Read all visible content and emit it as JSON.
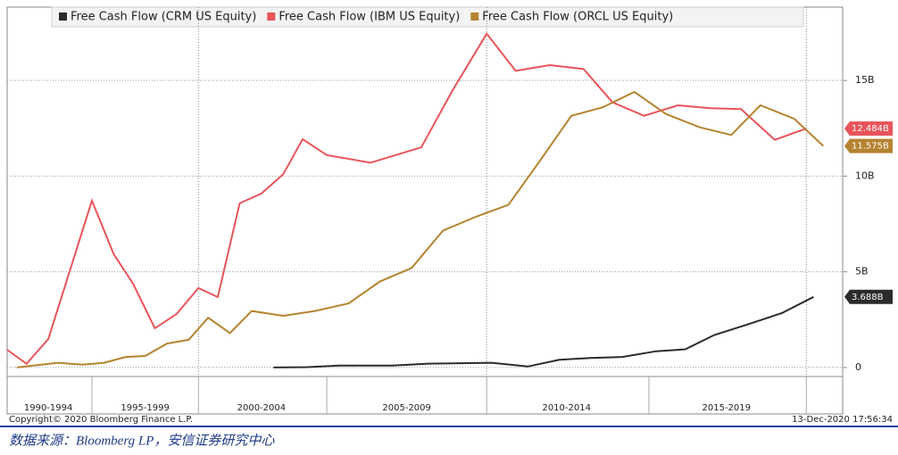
{
  "chart_data": {
    "type": "line",
    "legend": "top",
    "grid": true,
    "xlim": [
      1987.0,
      2021.5
    ],
    "ylim": [
      -0.47,
      18.83
    ],
    "yticks": [
      0,
      {
        "value": 5,
        "label": "5B"
      },
      {
        "value": 10,
        "label": "10B"
      },
      {
        "value": 15,
        "label": "15B"
      }
    ],
    "xticks": [
      1990.5,
      1994.9,
      2000.2,
      2006.8,
      2013.5,
      2020.0
    ],
    "xgrid": [
      1994.9,
      2006.8,
      2020.0
    ],
    "x_groups": [
      {
        "value": 1988.7,
        "label": "1990-1994"
      },
      {
        "value": 1992.7,
        "label": "1995-1999"
      },
      {
        "value": 1997.5,
        "label": "2000-2004"
      },
      {
        "value": 2003.5,
        "label": "2005-2009"
      },
      {
        "value": 2010.1,
        "label": "2010-2014"
      },
      {
        "value": 2016.7,
        "label": "2015-2019"
      }
    ],
    "series": [
      {
        "name": "Free Cash Flow (CRM US Equity)",
        "color": "#2b2b2b",
        "x": [
          1998.0,
          1999.4,
          2000.7,
          2002.9,
          2004.4,
          2007.0,
          2008.5,
          2009.8,
          2011.1,
          2012.4,
          2013.8,
          2015.0,
          2016.2,
          2017.7,
          2019.0,
          2020.3
        ],
        "values": [
          0,
          0.02,
          0.1,
          0.1,
          0.2,
          0.25,
          0.05,
          0.4,
          0.5,
          0.55,
          0.85,
          0.95,
          1.7,
          2.3,
          2.85,
          3.688
        ],
        "value_labels": [
          null,
          null,
          null,
          null,
          null,
          null,
          null,
          null,
          null,
          null,
          null,
          null,
          null,
          null,
          null,
          "3.688B"
        ]
      },
      {
        "name": "Free Cash Flow (IBM US Equity)",
        "color": "#e8545a",
        "x": [
          1987.0,
          1987.8,
          1988.7,
          1990.5,
          1991.4,
          1992.2,
          1993.1,
          1994.0,
          1994.9,
          1995.7,
          1996.6,
          1997.5,
          1998.4,
          1999.2,
          2000.2,
          2002.0,
          2004.1,
          2005.4,
          2006.8,
          2008.0,
          2009.4,
          2010.8,
          2012.0,
          2013.3,
          2014.7,
          2016.0,
          2017.3,
          2018.7,
          2020.0
        ],
        "values": [
          0.93,
          0.19,
          1.49,
          8.72,
          5.92,
          4.38,
          2.05,
          2.8,
          4.15,
          3.68,
          8.58,
          9.09,
          10.1,
          11.93,
          11.1,
          10.7,
          11.5,
          14.5,
          17.44,
          15.5,
          15.8,
          15.6,
          13.85,
          13.15,
          13.7,
          13.55,
          13.5,
          11.9,
          12.484
        ],
        "value_labels": [
          null,
          null,
          null,
          null,
          null,
          null,
          null,
          null,
          null,
          null,
          null,
          null,
          null,
          null,
          null,
          null,
          null,
          null,
          null,
          null,
          null,
          null,
          null,
          null,
          null,
          null,
          null,
          null,
          "12.484B"
        ]
      },
      {
        "name": "Free Cash Flow (ORCL US Equity)",
        "color": "#b5832f",
        "x": [
          1987.4,
          1989.1,
          1990.1,
          1991.0,
          1991.9,
          1992.7,
          1993.6,
          1994.5,
          1995.3,
          1996.2,
          1997.1,
          1998.4,
          1999.7,
          2001.1,
          2002.4,
          2003.7,
          2005.0,
          2006.4,
          2007.7,
          2009.0,
          2010.3,
          2011.6,
          2012.9,
          2014.2,
          2015.6,
          2016.9,
          2018.1,
          2019.5,
          2020.7
        ],
        "values": [
          0,
          0.25,
          0.15,
          0.25,
          0.55,
          0.6,
          1.25,
          1.45,
          2.6,
          1.8,
          2.95,
          2.7,
          2.95,
          3.35,
          4.5,
          5.2,
          7.15,
          7.9,
          8.5,
          10.8,
          13.15,
          13.6,
          14.4,
          13.25,
          12.55,
          12.15,
          13.7,
          13.0,
          11.575
        ],
        "value_labels": [
          null,
          null,
          null,
          null,
          null,
          null,
          null,
          null,
          null,
          null,
          null,
          null,
          null,
          null,
          null,
          null,
          null,
          null,
          null,
          null,
          null,
          null,
          null,
          null,
          null,
          null,
          null,
          null,
          "11.575B"
        ]
      }
    ]
  },
  "footer": {
    "copyright": "Copyright© 2020 Bloomberg Finance L.P.",
    "timestamp": "13-Dec-2020 17:56:34"
  },
  "caption": "数据来源：Bloomberg LP，安信证券研究中心"
}
